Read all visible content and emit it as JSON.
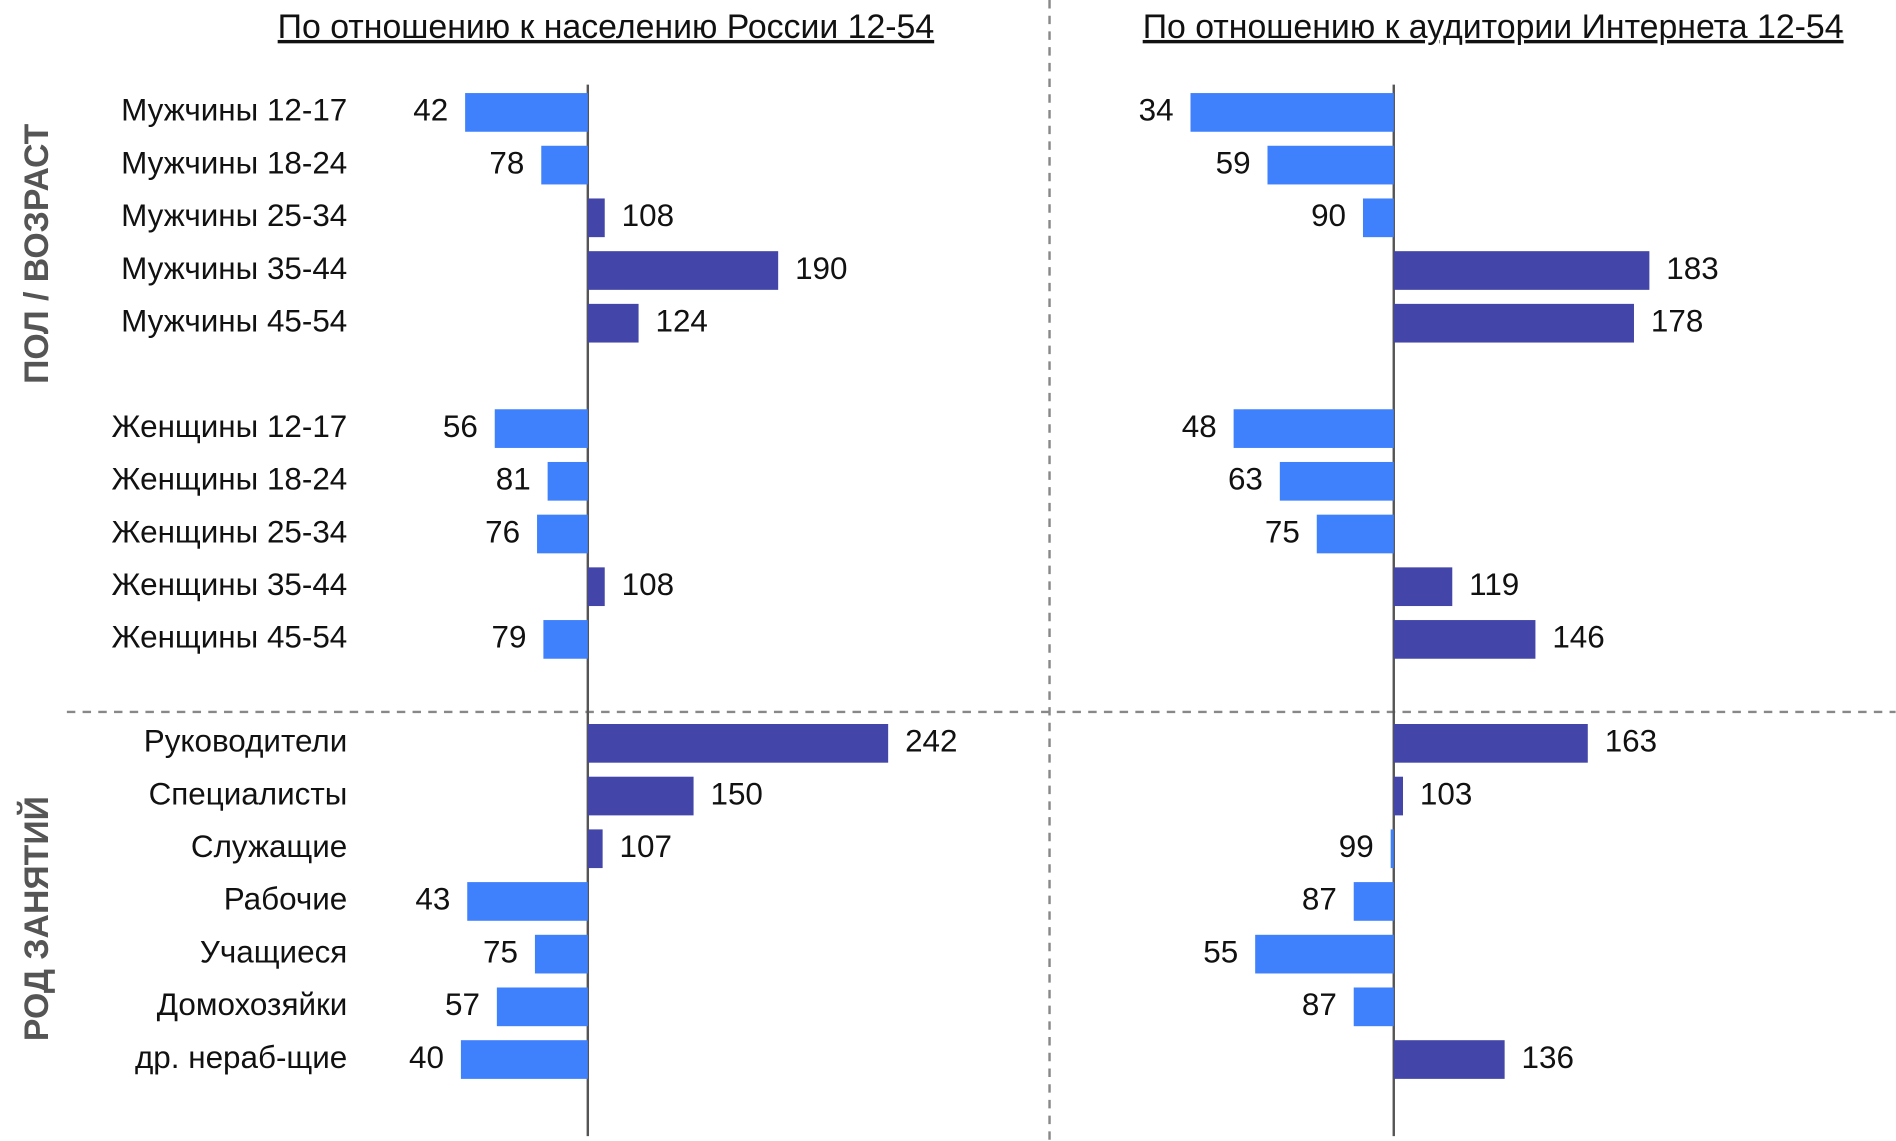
{
  "groups": [
    {
      "label": "ПОЛ / ВОЗРАСТ",
      "categories": [
        "Мужчины 12-17",
        "Мужчины 18-24",
        "Мужчины 25-34",
        "Мужчины 35-44",
        "Мужчины 45-54",
        null,
        "Женщины 12-17",
        "Женщины 18-24",
        "Женщины 25-34",
        "Женщины 35-44",
        "Женщины 45-54"
      ]
    },
    {
      "label": "РОД ЗАНЯТИЙ",
      "categories": [
        "Руководители",
        "Специалисты",
        "Служащие",
        "Рабочие",
        "Учащиеся",
        "Домохозяйки",
        "др. нераб-щие"
      ]
    }
  ],
  "chart_data": [
    {
      "type": "bar",
      "title": "По отношению к населению России 12-54",
      "values": [
        [
          42,
          78,
          108,
          190,
          124,
          null,
          56,
          81,
          76,
          108,
          79
        ],
        [
          242,
          150,
          107,
          43,
          75,
          57,
          40
        ]
      ],
      "xlim": [
        0,
        300
      ],
      "baseline": 100,
      "color_above": "#4346a8",
      "color_below": "#3f80fd"
    },
    {
      "type": "bar",
      "title": "По отношению к аудитории Интернета 12-54",
      "values": [
        [
          34,
          59,
          90,
          183,
          178,
          null,
          48,
          63,
          75,
          119,
          146
        ],
        [
          163,
          103,
          99,
          87,
          55,
          87,
          136
        ]
      ],
      "xlim": [
        0,
        250
      ],
      "baseline": 100,
      "color_above": "#4346a8",
      "color_below": "#3f80fd"
    }
  ]
}
